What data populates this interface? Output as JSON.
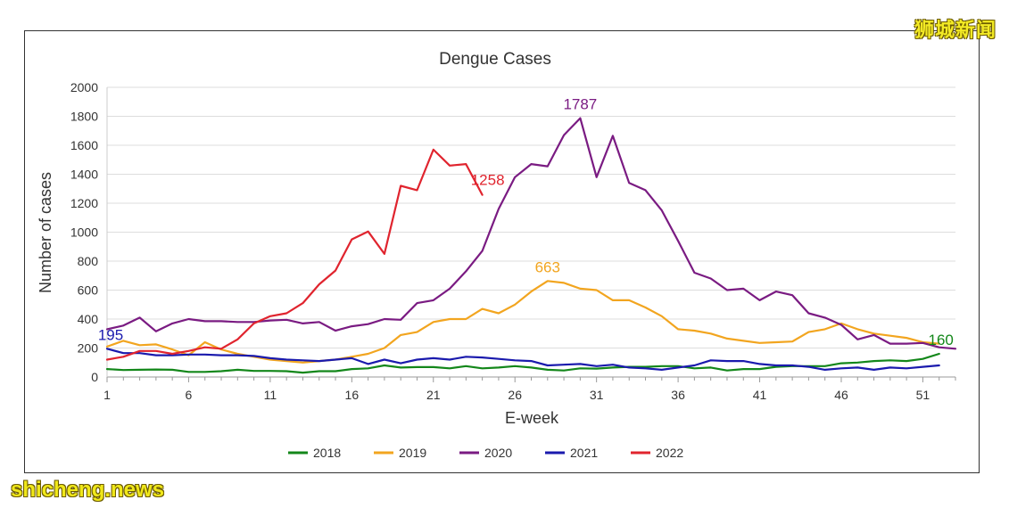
{
  "chart_data": {
    "type": "line",
    "title": "Dengue Cases",
    "xlabel": "E-week",
    "ylabel": "Number of cases",
    "xlim": [
      1,
      53
    ],
    "ylim": [
      0,
      2000
    ],
    "x_ticks": [
      1,
      6,
      11,
      16,
      21,
      26,
      31,
      36,
      41,
      46,
      51
    ],
    "y_ticks": [
      0,
      200,
      400,
      600,
      800,
      1000,
      1200,
      1400,
      1600,
      1800,
      2000
    ],
    "grid": true,
    "legend_position": "bottom",
    "series": [
      {
        "name": "2018",
        "color": "#13871a",
        "values": [
          55,
          48,
          50,
          52,
          50,
          35,
          35,
          40,
          50,
          42,
          42,
          40,
          30,
          40,
          40,
          55,
          60,
          80,
          65,
          68,
          68,
          60,
          75,
          60,
          65,
          75,
          65,
          50,
          45,
          60,
          58,
          65,
          70,
          70,
          75,
          75,
          60,
          65,
          45,
          55,
          55,
          70,
          75,
          75,
          75,
          95,
          100,
          110,
          115,
          110,
          125,
          160
        ]
      },
      {
        "name": "2019",
        "color": "#f2a51f",
        "values": [
          210,
          250,
          220,
          225,
          190,
          150,
          240,
          190,
          160,
          140,
          120,
          110,
          100,
          110,
          120,
          140,
          160,
          200,
          290,
          310,
          380,
          400,
          400,
          470,
          440,
          500,
          590,
          663,
          650,
          610,
          600,
          530,
          530,
          480,
          420,
          330,
          320,
          300,
          265,
          250,
          235,
          240,
          245,
          310,
          330,
          370,
          330,
          300,
          285,
          270,
          240,
          230
        ]
      },
      {
        "name": "2020",
        "color": "#7a1b82",
        "values": [
          330,
          355,
          410,
          315,
          370,
          400,
          385,
          385,
          380,
          380,
          390,
          395,
          370,
          380,
          320,
          350,
          365,
          400,
          395,
          510,
          530,
          610,
          730,
          870,
          1160,
          1380,
          1470,
          1455,
          1670,
          1787,
          1380,
          1665,
          1340,
          1290,
          1150,
          940,
          720,
          680,
          600,
          610,
          530,
          590,
          565,
          440,
          410,
          360,
          260,
          290,
          230,
          230,
          235,
          205,
          195
        ]
      },
      {
        "name": "2021",
        "color": "#1a1aad",
        "values": [
          195,
          165,
          165,
          150,
          150,
          155,
          155,
          150,
          150,
          145,
          130,
          120,
          115,
          110,
          120,
          130,
          90,
          120,
          95,
          120,
          130,
          120,
          140,
          135,
          125,
          115,
          110,
          80,
          85,
          90,
          75,
          85,
          65,
          60,
          50,
          65,
          80,
          115,
          110,
          110,
          90,
          80,
          80,
          70,
          50,
          60,
          65,
          50,
          65,
          60,
          70,
          80
        ]
      },
      {
        "name": "2022",
        "color": "#e0242e",
        "values": [
          120,
          140,
          180,
          180,
          160,
          180,
          205,
          195,
          260,
          370,
          420,
          440,
          510,
          640,
          735,
          950,
          1005,
          850,
          1320,
          1290,
          1570,
          1460,
          1470,
          1258
        ]
      }
    ],
    "annotations": [
      {
        "series": "2021",
        "week": 1,
        "value": 195,
        "text": "195",
        "color": "#1a1aad"
      },
      {
        "series": "2022",
        "week": 24,
        "value": 1258,
        "text": "1258",
        "color": "#e0242e"
      },
      {
        "series": "2019",
        "week": 28,
        "value": 663,
        "text": "663",
        "color": "#f2a51f"
      },
      {
        "series": "2020",
        "week": 30,
        "value": 1787,
        "text": "1787",
        "color": "#7a1b82"
      },
      {
        "series": "2018",
        "week": 52,
        "value": 160,
        "text": "160",
        "color": "#13871a"
      }
    ]
  },
  "watermarks": {
    "top_right": "狮城新闻",
    "bottom_left": "shicheng.news"
  }
}
